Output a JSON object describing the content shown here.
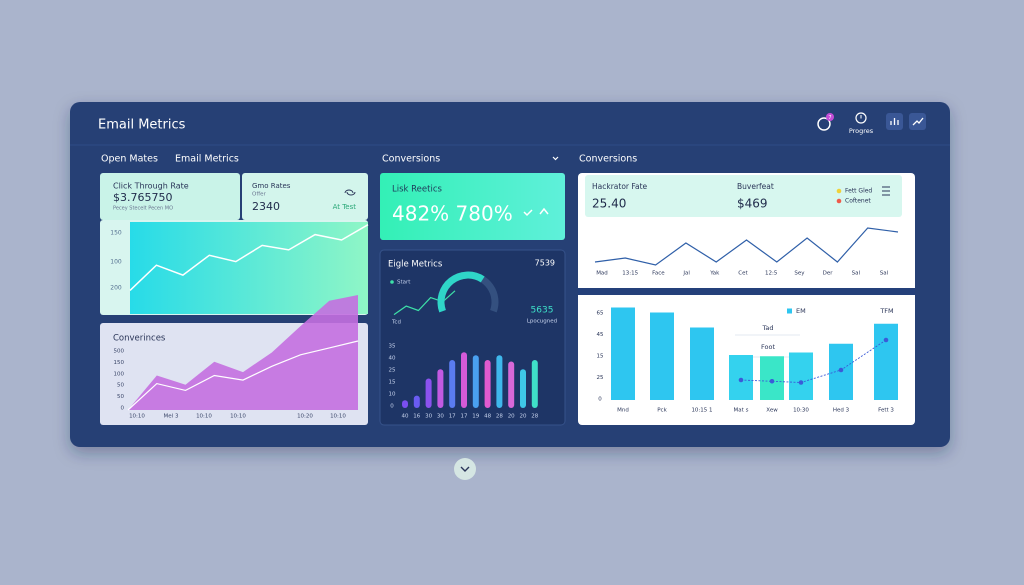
{
  "header": {
    "title": "Email Metrics",
    "badge": "7",
    "action": "Progres"
  },
  "tabs": [
    "Open Mates",
    "Email Metrics",
    "Conversions",
    "Conversions"
  ],
  "ctr_card": {
    "title": "Click Through Rate",
    "value": "$3.765750",
    "note": "Pecey Stecelt Pecen MO"
  },
  "rate_card": {
    "title": "Gmo Rates",
    "subtitle": "Offer",
    "value": "2340",
    "tag": "At Test"
  },
  "open_chart": {
    "type": "line",
    "ylabels": [
      "150",
      "100",
      "200"
    ],
    "ylim": [
      0,
      100
    ],
    "values": [
      24,
      52,
      41,
      63,
      56,
      74,
      69,
      86,
      80,
      97
    ],
    "color": "#ffffff"
  },
  "conversions_chart": {
    "type": "area",
    "title": "Converinces",
    "ylabels": [
      "500",
      "150",
      "100",
      "50",
      "50",
      "0"
    ],
    "xlabels": [
      "10:10",
      "Mel 3",
      "10:10",
      "10:10",
      "10:20",
      "10:10"
    ],
    "ylim": [
      0,
      1000
    ],
    "series": [
      {
        "color": "#c46fe0",
        "values": [
          0,
          300,
          220,
          420,
          330,
          500,
          730,
          950,
          1000
        ]
      },
      {
        "color": "#ffffff",
        "values": [
          0,
          230,
          170,
          300,
          260,
          380,
          480,
          540,
          600
        ]
      }
    ]
  },
  "link_card": {
    "title": "Lisk Reetics",
    "value": "482% 780%"
  },
  "engage_card": {
    "title": "Eigle Metrics",
    "total": "7539",
    "legend": "Start",
    "gauge_text": "5635",
    "gauge_caption": "Lpocugned",
    "axis_note": "Tcd",
    "sparkline": {
      "type": "line",
      "ylim": [
        0,
        100
      ],
      "values": [
        10,
        35,
        22,
        60,
        48,
        80
      ],
      "color": "#3de0a8"
    },
    "gauge": {
      "type": "gauge",
      "value": 65,
      "max": 100,
      "color": "#2fd6c8"
    },
    "bars": {
      "type": "bar",
      "ylabels": [
        "35",
        "40",
        "25",
        "15",
        "10",
        "0"
      ],
      "x": [
        "40",
        "16",
        "30",
        "30",
        "17",
        "17",
        "19",
        "48",
        "28",
        "20",
        "20",
        "28"
      ],
      "ylim": [
        0,
        40
      ],
      "values": [
        5,
        8,
        19,
        25,
        31,
        36,
        34,
        31,
        34,
        30,
        25,
        31
      ],
      "colors": [
        "#7a4ff0",
        "#6a5cf2",
        "#8a52ee",
        "#c25ae2",
        "#5a7cf0",
        "#d45ad8",
        "#4aa0f0",
        "#e05acf",
        "#3fb8ec",
        "#d868d8",
        "#3ec8e8",
        "#3fe0c8"
      ]
    }
  },
  "conv_card": {
    "stat1": {
      "label": "Hackrator Fate",
      "value": "25.40"
    },
    "stat2": {
      "label": "Buverfeat",
      "value": "$469"
    },
    "legend": [
      {
        "name": "Fett Gled",
        "color": "#f0d23a"
      },
      {
        "name": "Coftenet",
        "color": "#ef5a4a"
      }
    ],
    "trend": {
      "type": "line",
      "x": [
        "Mad",
        "13:15",
        "Face",
        "Jal",
        "Yak",
        "Cet",
        "12:5",
        "Sey",
        "Der",
        "Sal",
        "Sal"
      ],
      "ylim": [
        0,
        60
      ],
      "values": [
        9,
        15,
        4.5,
        37.5,
        9,
        42,
        9,
        45,
        9,
        60,
        54
      ],
      "color": "#2f5fa8"
    },
    "bars": {
      "type": "bar",
      "ylabels": [
        "65",
        "45",
        "15",
        "25",
        "0"
      ],
      "x": [
        "Mnd",
        "Pck",
        "10:15 1",
        "Mat s",
        "Xew",
        "10:30",
        "Hed 3",
        "Fett 3"
      ],
      "ylim": [
        0,
        80
      ],
      "values": [
        74,
        70,
        58,
        36,
        35,
        38,
        45,
        61
      ],
      "colors": [
        "#2ec6f0",
        "#2ec6f0",
        "#2ec6f0",
        "#34d2ee",
        "#3ae6c8",
        "#34d2ee",
        "#2ec6f0",
        "#2ec6f0"
      ],
      "line": {
        "values": [
          null,
          null,
          null,
          16,
          15,
          14,
          24,
          48
        ],
        "color": "#3a5bd8"
      },
      "labels": [
        "EM",
        "TFM",
        "Tad",
        "Foot"
      ]
    }
  }
}
